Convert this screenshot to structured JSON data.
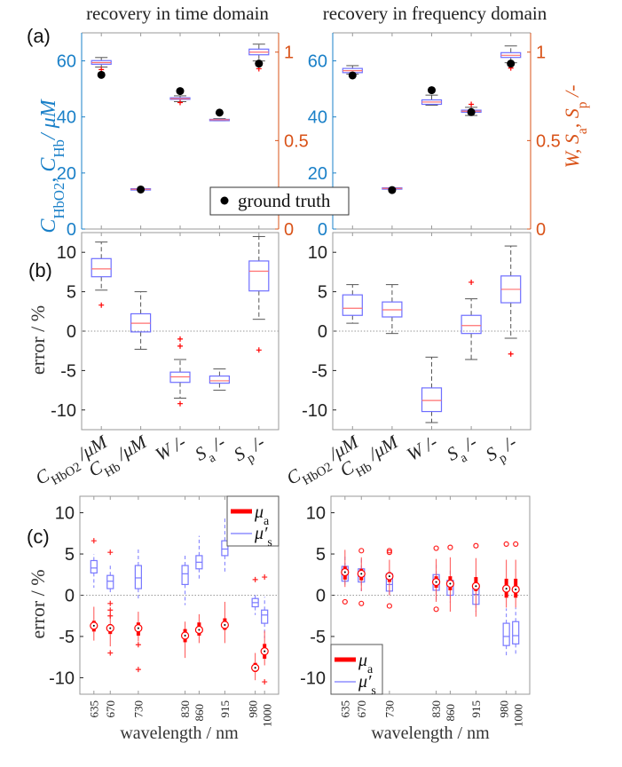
{
  "titles": {
    "time": "recovery in time domain",
    "frequency": "recovery in frequency domain"
  },
  "panel_labels": {
    "a": "(a)",
    "b": "(b)",
    "c": "(c)"
  },
  "colors": {
    "left_axis": "#1a80c8",
    "right_axis": "#d95319",
    "box": "#6e6eff",
    "median": "#ff7070",
    "whisker": "#555555",
    "mu_a": "#ff0000",
    "mu_s": "#7878ff",
    "frame": "#9a9a9a"
  },
  "chart_data": [
    {
      "id": "a-time",
      "type": "box",
      "title": "recovery in time domain",
      "ylabel": [
        {
          "t": "C"
        },
        {
          "sub": "HbO2"
        },
        {
          "t": ", C"
        },
        {
          "sub": "Hb"
        },
        {
          "t": "/ μM"
        }
      ],
      "ylim": [
        0,
        70
      ],
      "yticks": [
        "0",
        "20",
        "40",
        "60"
      ],
      "ytick_values": [
        0,
        20,
        40,
        60
      ],
      "y2lim": [
        0,
        1.109
      ],
      "y2ticks": [
        "0",
        "0.5",
        "1"
      ],
      "y2tick_values": [
        0,
        0.5,
        1
      ],
      "legend": {
        "label": "ground truth"
      },
      "boxes": [
        {
          "axis": "left",
          "q1": 58.8,
          "med": 59.4,
          "q3": 60.1,
          "wl": 57.8,
          "wh": 61.2,
          "out": [
            56.9
          ],
          "truth": 55.0
        },
        {
          "axis": "left",
          "q1": 14.0,
          "med": 14.2,
          "q3": 14.4,
          "wl": 14.0,
          "wh": 14.4,
          "out": [],
          "truth": 14.1
        },
        {
          "axis": "right",
          "q1": 0.733,
          "med": 0.737,
          "q3": 0.742,
          "wl": 0.72,
          "wh": 0.753,
          "out": [
            0.715
          ],
          "truth": 0.78
        },
        {
          "axis": "right",
          "q1": 0.615,
          "med": 0.618,
          "q3": 0.62,
          "wl": 0.612,
          "wh": 0.624,
          "out": [],
          "truth": 0.658
        },
        {
          "axis": "right",
          "q1": 0.985,
          "med": 1.0,
          "q3": 1.017,
          "wl": 0.95,
          "wh": 1.045,
          "out": [
            0.906
          ],
          "truth": 0.935
        }
      ]
    },
    {
      "id": "a-frequency",
      "type": "box",
      "title": "recovery in frequency domain",
      "ylabel2": [
        {
          "t": "W, S"
        },
        {
          "sub": "a"
        },
        {
          "t": ", S"
        },
        {
          "sub": "p"
        },
        {
          "t": " /-"
        }
      ],
      "ylim": [
        0,
        70
      ],
      "yticks": [
        "0",
        "20",
        "40",
        "60"
      ],
      "ytick_values": [
        0,
        20,
        40,
        60
      ],
      "y2lim": [
        0,
        1.109
      ],
      "y2ticks": [
        "0",
        "0.5",
        "1"
      ],
      "y2tick_values": [
        0,
        0.5,
        1
      ],
      "boxes": [
        {
          "axis": "left",
          "q1": 55.8,
          "med": 56.5,
          "q3": 57.3,
          "wl": 55.3,
          "wh": 58.3,
          "out": [],
          "truth": 54.8
        },
        {
          "axis": "left",
          "q1": 14.3,
          "med": 14.5,
          "q3": 14.7,
          "wl": 14.3,
          "wh": 14.7,
          "out": [],
          "truth": 13.9
        },
        {
          "axis": "right",
          "q1": 0.705,
          "med": 0.718,
          "q3": 0.73,
          "wl": 0.7,
          "wh": 0.757,
          "out": [],
          "truth": 0.785
        },
        {
          "axis": "right",
          "q1": 0.66,
          "med": 0.666,
          "q3": 0.672,
          "wl": 0.642,
          "wh": 0.688,
          "out": [
            0.705
          ],
          "truth": 0.661
        },
        {
          "axis": "right",
          "q1": 0.97,
          "med": 0.982,
          "q3": 0.997,
          "wl": 0.94,
          "wh": 1.035,
          "out": [
            0.91
          ],
          "truth": 0.935
        }
      ]
    },
    {
      "id": "b-time",
      "type": "box",
      "ylabel": "error / %",
      "ylim": [
        -12.5,
        12.5
      ],
      "yticks": [
        "-10",
        "-5",
        "0",
        "5",
        "10"
      ],
      "ytick_values": [
        -10,
        -5,
        0,
        5,
        10
      ],
      "categories": [
        [
          {
            "t": "C"
          },
          {
            "sub": "HbO2"
          },
          {
            "t": " /μM"
          }
        ],
        [
          {
            "t": "C"
          },
          {
            "sub": "Hb"
          },
          {
            "t": " /μM"
          }
        ],
        [
          {
            "t": "W"
          },
          {
            "t": "  /-"
          }
        ],
        [
          {
            "t": "S"
          },
          {
            "sub": "a"
          },
          {
            "t": " /-"
          }
        ],
        [
          {
            "t": "S"
          },
          {
            "sub": "p"
          },
          {
            "t": " /-"
          }
        ]
      ],
      "boxes": [
        {
          "q1": 6.9,
          "med": 7.9,
          "q3": 9.2,
          "wl": 5.2,
          "wh": 11.3,
          "out": [
            3.3
          ]
        },
        {
          "q1": -0.1,
          "med": 1.0,
          "q3": 2.2,
          "wl": -2.3,
          "wh": 5.0,
          "out": []
        },
        {
          "q1": -6.5,
          "med": -5.8,
          "q3": -5.2,
          "wl": -8.5,
          "wh": -3.6,
          "out": [
            -1.0,
            -1.9,
            -9.2
          ]
        },
        {
          "q1": -6.6,
          "med": -6.3,
          "q3": -5.7,
          "wl": -7.5,
          "wh": -4.8,
          "out": []
        },
        {
          "q1": 5.1,
          "med": 7.6,
          "q3": 8.9,
          "wl": 1.5,
          "wh": 12.0,
          "out": [
            -2.4
          ]
        }
      ]
    },
    {
      "id": "b-frequency",
      "type": "box",
      "ylim": [
        -12.5,
        12.5
      ],
      "yticks": [
        "-10",
        "-5",
        "0",
        "5",
        "10"
      ],
      "ytick_values": [
        -10,
        -5,
        0,
        5,
        10
      ],
      "categories": [
        [
          {
            "t": "C"
          },
          {
            "sub": "HbO2"
          },
          {
            "t": " /μM"
          }
        ],
        [
          {
            "t": "C"
          },
          {
            "sub": "Hb"
          },
          {
            "t": " /μM"
          }
        ],
        [
          {
            "t": "W"
          },
          {
            "t": "  /-"
          }
        ],
        [
          {
            "t": "S"
          },
          {
            "sub": "a"
          },
          {
            "t": " /-"
          }
        ],
        [
          {
            "t": "S"
          },
          {
            "sub": "p"
          },
          {
            "t": " /-"
          }
        ]
      ],
      "boxes": [
        {
          "q1": 2.0,
          "med": 2.9,
          "q3": 4.6,
          "wl": 1.0,
          "wh": 5.9,
          "out": []
        },
        {
          "q1": 1.8,
          "med": 2.7,
          "q3": 3.7,
          "wl": -0.3,
          "wh": 5.9,
          "out": []
        },
        {
          "q1": -10.2,
          "med": -8.8,
          "q3": -7.2,
          "wl": -11.6,
          "wh": -3.3,
          "out": []
        },
        {
          "q1": -0.3,
          "med": 0.7,
          "q3": 2.0,
          "wl": -3.6,
          "wh": 4.1,
          "out": [
            6.2
          ]
        },
        {
          "q1": 3.6,
          "med": 5.3,
          "q3": 7.0,
          "wl": -0.9,
          "wh": 10.8,
          "out": [
            -2.9
          ]
        }
      ]
    },
    {
      "id": "c-time",
      "type": "box",
      "ylabel": "error / %",
      "xlabel": "wavelength / nm",
      "xlim": [
        605,
        1030
      ],
      "ylim": [
        -12,
        12
      ],
      "yticks": [
        "-10",
        "-5",
        "0",
        "5",
        "10"
      ],
      "ytick_values": [
        -10,
        -5,
        0,
        5,
        10
      ],
      "x": [
        635,
        670,
        730,
        830,
        860,
        915,
        980,
        1000
      ],
      "xticks": [
        "635",
        "670",
        "730",
        "830",
        "860",
        "915",
        "980",
        "1000"
      ],
      "legend": {
        "position": "top-right",
        "mu_a": [
          {
            "t": "μ"
          },
          {
            "sub": "a"
          }
        ],
        "mu_s": [
          {
            "t": "μ′"
          },
          {
            "sub": "s"
          }
        ]
      },
      "series": [
        {
          "name": "mu_s'",
          "boxes": [
            {
              "q1": 2.7,
              "med": 3.3,
              "q3": 4.2,
              "wl": 0.9,
              "wh": 5.0,
              "out": []
            },
            {
              "q1": 0.8,
              "med": 1.7,
              "q3": 2.4,
              "wl": 0.2,
              "wh": 3.9,
              "out": []
            },
            {
              "q1": 0.8,
              "med": 2.1,
              "q3": 3.6,
              "wl": -0.5,
              "wh": 5.7,
              "out": []
            },
            {
              "q1": 1.3,
              "med": 2.6,
              "q3": 3.6,
              "wl": -1.2,
              "wh": 5.1,
              "out": []
            },
            {
              "q1": 3.2,
              "med": 4.0,
              "q3": 4.8,
              "wl": 1.7,
              "wh": 7.2,
              "out": []
            },
            {
              "q1": 4.8,
              "med": 5.6,
              "q3": 6.6,
              "wl": 2.8,
              "wh": 9.3,
              "out": []
            },
            {
              "q1": -1.4,
              "med": -0.9,
              "q3": -0.4,
              "wl": -2.4,
              "wh": 0.1,
              "out": []
            },
            {
              "q1": -3.4,
              "med": -2.4,
              "q3": -1.8,
              "wl": -5.2,
              "wh": -0.2,
              "out": []
            }
          ]
        },
        {
          "name": "mu_a",
          "boxes": [
            {
              "q1": -4.4,
              "med": -3.7,
              "q3": -3.1,
              "wl": -5.5,
              "wh": -1.4,
              "out": [
                6.6
              ]
            },
            {
              "q1": -4.7,
              "med": -4.0,
              "q3": -3.5,
              "wl": -6.2,
              "wh": -2.0,
              "out": [
                5.2,
                -1.0,
                -1.8,
                -2.5,
                -7.0
              ]
            },
            {
              "q1": -4.9,
              "med": -4.0,
              "q3": -3.3,
              "wl": -5.6,
              "wh": -2.0,
              "out": [
                -6.0,
                -9.0
              ]
            },
            {
              "q1": -5.7,
              "med": -4.9,
              "q3": -4.1,
              "wl": -7.6,
              "wh": -3.2,
              "out": []
            },
            {
              "q1": -4.9,
              "med": -4.2,
              "q3": -3.3,
              "wl": -5.8,
              "wh": -2.3,
              "out": []
            },
            {
              "q1": -4.2,
              "med": -3.6,
              "q3": -2.8,
              "wl": -5.8,
              "wh": -0.8,
              "out": []
            },
            {
              "q1": -9.3,
              "med": -8.8,
              "q3": -8.2,
              "wl": -10.3,
              "wh": -7.0,
              "out": [
                1.9
              ]
            },
            {
              "q1": -7.7,
              "med": -6.8,
              "q3": -5.9,
              "wl": -8.5,
              "wh": -4.3,
              "out": [
                2.2,
                -10.5
              ]
            }
          ]
        }
      ]
    },
    {
      "id": "c-frequency",
      "type": "box",
      "xlabel": "wavelength / nm",
      "xlim": [
        605,
        1030
      ],
      "ylim": [
        -12,
        12
      ],
      "yticks": [
        "-10",
        "-5",
        "0",
        "5",
        "10"
      ],
      "ytick_values": [
        -10,
        -5,
        0,
        5,
        10
      ],
      "x": [
        635,
        670,
        730,
        830,
        860,
        915,
        980,
        1000
      ],
      "xticks": [
        "635",
        "670",
        "730",
        "830",
        "860",
        "915",
        "980",
        "1000"
      ],
      "legend": {
        "position": "bottom-left",
        "mu_a": [
          {
            "t": "μ"
          },
          {
            "sub": "a"
          }
        ],
        "mu_s": [
          {
            "t": "μ′"
          },
          {
            "sub": "s"
          }
        ]
      },
      "series": [
        {
          "name": "mu_s'",
          "boxes": [
            {
              "q1": 1.7,
              "med": 2.8,
              "q3": 3.5,
              "wl": 1.0,
              "wh": 4.8,
              "out": []
            },
            {
              "q1": 1.6,
              "med": 2.5,
              "q3": 3.2,
              "wl": 0.5,
              "wh": 4.6,
              "out": []
            },
            {
              "q1": 0.5,
              "med": 1.3,
              "q3": 2.6,
              "wl": -0.3,
              "wh": 3.3,
              "out": []
            },
            {
              "q1": 0.6,
              "med": 1.5,
              "q3": 2.5,
              "wl": -0.9,
              "wh": 3.8,
              "out": []
            },
            {
              "q1": 0.0,
              "med": 1.2,
              "q3": 1.8,
              "wl": -0.9,
              "wh": 3.3,
              "out": []
            },
            {
              "q1": -1.1,
              "med": 0.1,
              "q3": 1.0,
              "wl": -2.0,
              "wh": 2.3,
              "out": []
            },
            {
              "q1": -6.1,
              "med": -5.0,
              "q3": -3.4,
              "wl": -7.4,
              "wh": -1.6,
              "out": []
            },
            {
              "q1": -5.9,
              "med": -4.9,
              "q3": -3.2,
              "wl": -7.3,
              "wh": -1.5,
              "out": []
            }
          ]
        },
        {
          "name": "mu_a",
          "boxes": [
            {
              "q1": 1.9,
              "med": 2.8,
              "q3": 3.5,
              "wl": 1.0,
              "wh": 5.5,
              "out": [
                -0.8
              ]
            },
            {
              "q1": 1.8,
              "med": 2.6,
              "q3": 3.2,
              "wl": 0.5,
              "wh": 4.6,
              "out": [
                5.4,
                -1.0
              ]
            },
            {
              "q1": 1.6,
              "med": 2.3,
              "q3": 2.8,
              "wl": 0.0,
              "wh": 4.3,
              "out": [
                5.4,
                5.2,
                -1.3
              ]
            },
            {
              "q1": 0.9,
              "med": 1.6,
              "q3": 2.3,
              "wl": -0.8,
              "wh": 4.4,
              "out": [
                5.7,
                -1.7
              ]
            },
            {
              "q1": 0.6,
              "med": 1.4,
              "q3": 2.3,
              "wl": -2.0,
              "wh": 4.6,
              "out": [
                5.8
              ]
            },
            {
              "q1": 0.5,
              "med": 1.1,
              "q3": 2.2,
              "wl": -2.6,
              "wh": 4.5,
              "out": [
                6.0
              ]
            },
            {
              "q1": -0.3,
              "med": 0.8,
              "q3": 2.0,
              "wl": -1.5,
              "wh": 4.3,
              "out": [
                6.2
              ]
            },
            {
              "q1": -0.3,
              "med": 0.7,
              "q3": 2.0,
              "wl": -1.5,
              "wh": 4.3,
              "out": [
                6.2
              ]
            }
          ]
        }
      ]
    }
  ]
}
